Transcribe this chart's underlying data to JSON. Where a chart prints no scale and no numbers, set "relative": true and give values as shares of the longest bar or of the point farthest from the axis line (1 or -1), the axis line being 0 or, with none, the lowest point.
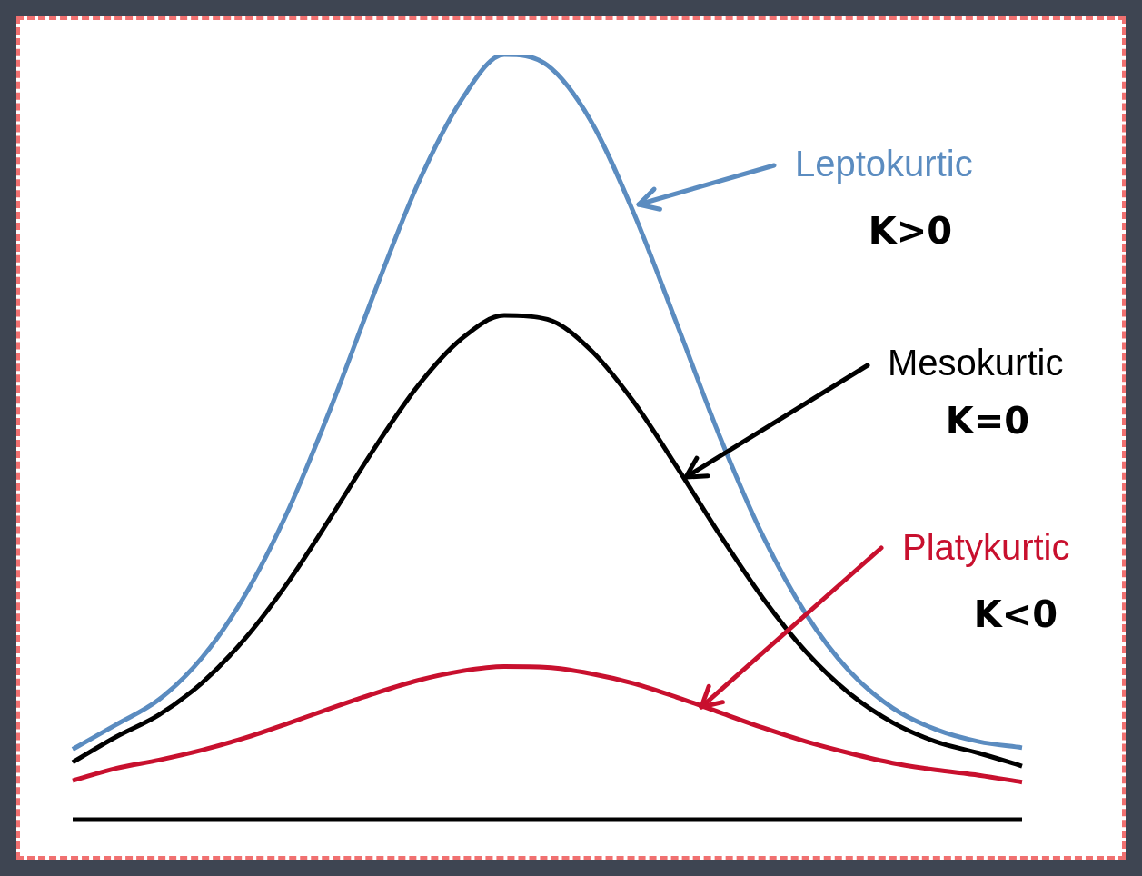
{
  "chart_data": {
    "type": "line",
    "relative": true,
    "categories": [
      null,
      null,
      null,
      null,
      null,
      null,
      null,
      null,
      null,
      null,
      null,
      null,
      null,
      null,
      null,
      null,
      null,
      null,
      null,
      null,
      null,
      null,
      null
    ],
    "series": [
      {
        "name": "Leptokurtic",
        "color": "#5b8cc0",
        "values": [
          0.092,
          0.124,
          0.157,
          0.212,
          0.294,
          0.405,
          0.541,
          0.69,
          0.831,
          0.94,
          1.0,
          0.986,
          0.914,
          0.793,
          0.648,
          0.5,
          0.37,
          0.268,
          0.194,
          0.146,
          0.118,
          0.102,
          0.094
        ]
      },
      {
        "name": "Mesokurtic",
        "color": "#000000",
        "values": [
          0.075,
          0.108,
          0.137,
          0.179,
          0.237,
          0.311,
          0.397,
          0.486,
          0.567,
          0.628,
          0.659,
          0.654,
          0.614,
          0.546,
          0.461,
          0.372,
          0.289,
          0.219,
          0.165,
          0.127,
          0.102,
          0.087,
          0.07
        ]
      },
      {
        "name": "Platykurtic",
        "color": "#c8102e",
        "values": [
          0.051,
          0.067,
          0.078,
          0.091,
          0.107,
          0.126,
          0.146,
          0.165,
          0.182,
          0.194,
          0.2,
          0.199,
          0.191,
          0.178,
          0.16,
          0.14,
          0.12,
          0.102,
          0.087,
          0.074,
          0.065,
          0.058,
          0.049
        ]
      }
    ],
    "annotations": [
      "K>0",
      "K=0",
      "K<0"
    ]
  }
}
